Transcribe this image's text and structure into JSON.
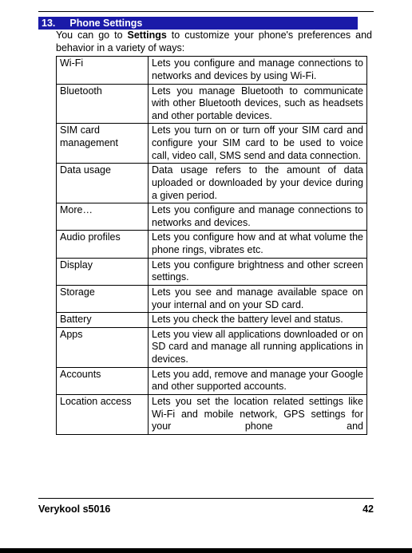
{
  "section": {
    "number": "13.",
    "title": "Phone Settings"
  },
  "intro": {
    "prefix": "You can go to ",
    "bold": "Settings",
    "suffix": " to customize your phone's preferences and behavior in a variety of ways:"
  },
  "rows": [
    {
      "name": "Wi-Fi",
      "desc": "Lets you configure and manage connections to networks and devices by using Wi-Fi."
    },
    {
      "name": "Bluetooth",
      "desc": "Lets you manage Bluetooth to communicate with other Bluetooth devices, such as headsets and other portable devices."
    },
    {
      "name": "SIM card management",
      "desc": "Lets you turn on or turn off your SIM card and configure your SIM card to be used to voice call, video call, SMS send and data connection."
    },
    {
      "name": "Data usage",
      "desc": "Data usage refers to the amount of data uploaded or downloaded by your device during a given period."
    },
    {
      "name": "More…",
      "desc": "Lets you configure and manage connections to networks and devices."
    },
    {
      "name": "Audio profiles",
      "desc": "Lets you configure how and at what volume the phone rings, vibrates etc."
    },
    {
      "name": "Display",
      "desc": "Lets you configure brightness and other screen settings."
    },
    {
      "name": "Storage",
      "desc": "Lets you see and manage available space on your internal and on your SD card."
    },
    {
      "name": "Battery",
      "desc": "Lets you check the battery level and status."
    },
    {
      "name": "Apps",
      "desc": "Lets you view all applications downloaded or on SD card and manage all running applications in devices."
    },
    {
      "name": "Accounts",
      "desc": "Lets you add, remove and manage your Google and other supported accounts."
    },
    {
      "name": "Location access",
      "desc": "Lets you set the location related settings like Wi-Fi and mobile network, GPS settings for your phone and"
    }
  ],
  "footer": {
    "model": "Verykool s5016",
    "page": "42"
  },
  "colors": {
    "header_bg": "#1a1aa8",
    "header_fg": "#ffffff",
    "text": "#000000",
    "border": "#000000"
  },
  "typography": {
    "body_pt": 12.5,
    "footer_pt": 12.5,
    "family": "Arial"
  }
}
